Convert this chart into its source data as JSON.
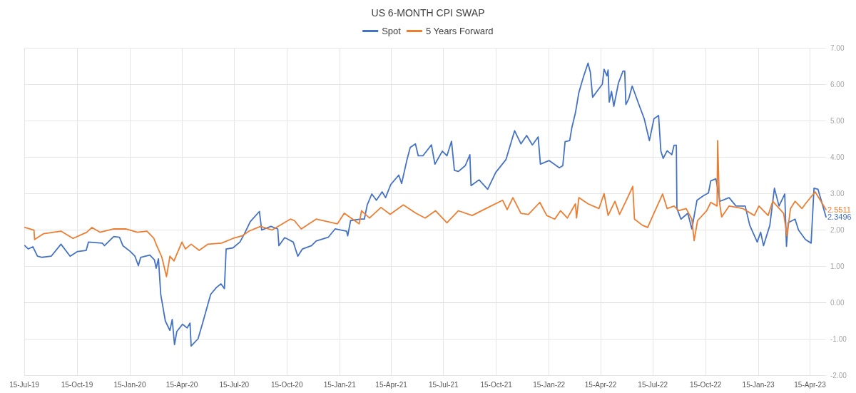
{
  "chart_data": {
    "type": "line",
    "title": "US 6-MONTH CPI SWAP",
    "legend": "top",
    "grid": true,
    "marker": "none",
    "line_style": "solid",
    "xlim": [
      "2019-07-15",
      "2023-05-13"
    ],
    "xticks": [
      {
        "value": "2019-07-15",
        "label": "15-Jul-19"
      },
      {
        "value": "2019-10-15",
        "label": "15-Oct-19"
      },
      {
        "value": "2020-01-15",
        "label": "15-Jan-20"
      },
      {
        "value": "2020-04-15",
        "label": "15-Apr-20"
      },
      {
        "value": "2020-07-15",
        "label": "15-Jul-20"
      },
      {
        "value": "2020-10-15",
        "label": "15-Oct-20"
      },
      {
        "value": "2021-01-15",
        "label": "15-Jan-21"
      },
      {
        "value": "2021-04-15",
        "label": "15-Apr-21"
      },
      {
        "value": "2021-07-15",
        "label": "15-Jul-21"
      },
      {
        "value": "2021-10-15",
        "label": "15-Oct-21"
      },
      {
        "value": "2022-01-15",
        "label": "15-Jan-22"
      },
      {
        "value": "2022-04-15",
        "label": "15-Apr-22"
      },
      {
        "value": "2022-07-15",
        "label": "15-Jul-22"
      },
      {
        "value": "2022-10-15",
        "label": "15-Oct-22"
      },
      {
        "value": "2023-01-15",
        "label": "15-Jan-23"
      },
      {
        "value": "2023-04-15",
        "label": "15-Apr-23"
      }
    ],
    "ylim": [
      -2,
      7
    ],
    "yticks": [
      {
        "value": -2,
        "label": "-2.00"
      },
      {
        "value": -1,
        "label": "-1.00"
      },
      {
        "value": 0,
        "label": "0.00"
      },
      {
        "value": 1,
        "label": "1.00"
      },
      {
        "value": 2,
        "label": "2.00"
      },
      {
        "value": 3,
        "label": "3.00"
      },
      {
        "value": 4,
        "label": "4.00"
      },
      {
        "value": 5,
        "label": "5.00"
      },
      {
        "value": 6,
        "label": "6.00"
      },
      {
        "value": 7,
        "label": "7.00"
      }
    ],
    "annotations": [
      {
        "text": "2.5511",
        "x": "2023-05-13",
        "y": 2.5511
      },
      {
        "text": "2.3496",
        "x": "2023-05-13",
        "y": 2.3496
      }
    ],
    "series": [
      {
        "name": "Spot",
        "color": "#4472c4",
        "x": [
          "2019-07-16",
          "2019-07-22",
          "2019-07-30",
          "2019-08-07",
          "2019-08-15",
          "2019-08-31",
          "2019-09-17",
          "2019-10-03",
          "2019-10-16",
          "2019-10-31",
          "2019-11-04",
          "2019-11-28",
          "2019-12-02",
          "2019-12-18",
          "2019-12-28",
          "2020-01-03",
          "2020-01-16",
          "2020-01-24",
          "2020-01-30",
          "2020-02-03",
          "2020-02-19",
          "2020-02-27",
          "2020-03-01",
          "2020-03-05",
          "2020-03-09",
          "2020-03-17",
          "2020-03-25",
          "2020-03-29",
          "2020-04-02",
          "2020-04-06",
          "2020-04-16",
          "2020-04-24",
          "2020-04-29",
          "2020-05-01",
          "2020-05-13",
          "2020-05-21",
          "2020-06-04",
          "2020-06-14",
          "2020-06-22",
          "2020-06-28",
          "2020-07-01",
          "2020-07-13",
          "2020-07-25",
          "2020-08-02",
          "2020-08-12",
          "2020-08-28",
          "2020-09-01",
          "2020-09-17",
          "2020-09-29",
          "2020-10-01",
          "2020-10-11",
          "2020-10-14",
          "2020-10-26",
          "2020-11-03",
          "2020-11-11",
          "2020-11-27",
          "2020-12-05",
          "2020-12-26",
          "2021-01-07",
          "2021-01-27",
          "2021-01-29",
          "2021-02-03",
          "2021-02-21",
          "2021-02-27",
          "2021-03-04",
          "2021-03-12",
          "2021-03-20",
          "2021-03-30",
          "2021-04-05",
          "2021-04-14",
          "2021-04-28",
          "2021-05-03",
          "2021-05-12",
          "2021-05-18",
          "2021-05-27",
          "2021-06-01",
          "2021-06-09",
          "2021-06-24",
          "2021-06-30",
          "2021-07-13",
          "2021-07-21",
          "2021-07-29",
          "2021-08-03",
          "2021-08-10",
          "2021-08-22",
          "2021-08-30",
          "2021-09-01",
          "2021-09-15",
          "2021-09-30",
          "2021-10-14",
          "2021-11-01",
          "2021-11-16",
          "2021-11-27",
          "2021-12-07",
          "2021-12-17",
          "2021-12-27",
          "2021-12-31",
          "2022-01-15",
          "2022-02-02",
          "2022-02-08",
          "2022-02-12",
          "2022-02-20",
          "2022-02-24",
          "2022-03-02",
          "2022-03-08",
          "2022-03-16",
          "2022-03-24",
          "2022-03-28",
          "2022-04-01",
          "2022-04-07",
          "2022-04-18",
          "2022-04-21",
          "2022-04-26",
          "2022-04-28",
          "2022-04-30",
          "2022-05-04",
          "2022-05-08",
          "2022-05-16",
          "2022-05-24",
          "2022-05-27",
          "2022-05-29",
          "2022-06-03",
          "2022-06-09",
          "2022-06-20",
          "2022-06-30",
          "2022-07-09",
          "2022-07-17",
          "2022-07-25",
          "2022-07-29",
          "2022-08-02",
          "2022-08-09",
          "2022-08-17",
          "2022-08-21",
          "2022-08-25",
          "2022-08-26",
          "2022-09-02",
          "2022-09-14",
          "2022-09-21",
          "2022-09-30",
          "2022-10-12",
          "2022-10-20",
          "2022-10-24",
          "2022-11-02",
          "2022-11-09",
          "2022-11-25",
          "2022-12-07",
          "2022-12-23",
          "2022-12-31",
          "2023-01-13",
          "2023-01-19",
          "2023-01-24",
          "2023-02-04",
          "2023-02-12",
          "2023-02-20",
          "2023-03-02",
          "2023-03-05",
          "2023-03-08",
          "2023-03-20",
          "2023-03-26",
          "2023-04-07",
          "2023-04-17",
          "2023-04-22",
          "2023-04-29",
          "2023-05-13"
        ],
        "values": [
          1.56,
          1.47,
          1.53,
          1.27,
          1.24,
          1.27,
          1.6,
          1.27,
          1.4,
          1.43,
          1.66,
          1.63,
          1.56,
          1.81,
          1.79,
          1.56,
          1.4,
          1.27,
          1.01,
          1.24,
          1.3,
          1.17,
          0.94,
          1.2,
          0.22,
          -0.51,
          -0.77,
          -0.47,
          -1.16,
          -0.8,
          -0.6,
          -0.7,
          -0.57,
          -1.2,
          -1.0,
          -0.57,
          0.22,
          0.41,
          0.51,
          0.38,
          1.47,
          1.5,
          1.66,
          1.89,
          2.22,
          2.5,
          1.99,
          2.09,
          2.02,
          1.56,
          1.78,
          1.76,
          1.66,
          1.27,
          1.47,
          1.56,
          1.69,
          1.79,
          2.02,
          1.96,
          1.83,
          2.25,
          2.29,
          2.29,
          2.68,
          2.98,
          2.81,
          3.04,
          2.88,
          3.24,
          3.5,
          3.27,
          3.9,
          4.26,
          4.36,
          4.03,
          4.03,
          4.33,
          3.8,
          4.16,
          4.03,
          4.43,
          3.63,
          3.6,
          3.76,
          4.06,
          3.21,
          3.37,
          3.11,
          3.57,
          3.93,
          4.72,
          4.36,
          4.59,
          4.33,
          4.55,
          3.8,
          3.9,
          3.7,
          3.76,
          4.42,
          4.45,
          4.82,
          5.21,
          5.77,
          6.2,
          6.58,
          6.33,
          5.64,
          5.77,
          6.0,
          6.41,
          6.23,
          6.39,
          5.51,
          5.8,
          5.39,
          6.03,
          6.36,
          6.36,
          5.44,
          5.6,
          5.95,
          5.47,
          5.05,
          4.45,
          5.05,
          5.14,
          4.16,
          3.96,
          4.17,
          4.06,
          4.32,
          4.32,
          2.58,
          2.29,
          2.45,
          2.02,
          2.81,
          2.94,
          3.01,
          3.34,
          3.4,
          2.78,
          2.88,
          2.65,
          2.65,
          2.12,
          1.66,
          1.93,
          1.56,
          2.12,
          3.14,
          2.65,
          2.98,
          1.54,
          2.19,
          2.29,
          1.99,
          1.73,
          1.63,
          3.14,
          3.11,
          2.3496
        ]
      },
      {
        "name": "5 Years Forward",
        "color": "#ed7d31",
        "x": [
          "2019-07-16",
          "2019-08-01",
          "2019-08-02",
          "2019-08-18",
          "2019-09-17",
          "2019-10-08",
          "2019-11-01",
          "2019-11-10",
          "2019-11-24",
          "2019-12-18",
          "2020-01-08",
          "2020-01-28",
          "2020-02-14",
          "2020-02-26",
          "2020-03-02",
          "2020-03-11",
          "2020-03-19",
          "2020-03-25",
          "2020-04-01",
          "2020-04-15",
          "2020-04-21",
          "2020-05-01",
          "2020-05-15",
          "2020-05-30",
          "2020-06-23",
          "2020-07-13",
          "2020-07-29",
          "2020-08-10",
          "2020-08-30",
          "2020-09-19",
          "2020-10-21",
          "2020-10-28",
          "2020-11-09",
          "2020-12-05",
          "2021-01-11",
          "2021-01-23",
          "2021-02-18",
          "2021-02-22",
          "2021-03-08",
          "2021-03-28",
          "2021-04-13",
          "2021-05-06",
          "2021-05-28",
          "2021-06-13",
          "2021-07-01",
          "2021-07-21",
          "2021-08-10",
          "2021-09-03",
          "2021-09-27",
          "2021-10-26",
          "2021-11-03",
          "2021-11-13",
          "2021-11-27",
          "2021-12-10",
          "2021-12-30",
          "2022-01-11",
          "2022-01-25",
          "2022-02-04",
          "2022-02-16",
          "2022-03-02",
          "2022-03-04",
          "2022-03-08",
          "2022-03-24",
          "2022-04-12",
          "2022-04-21",
          "2022-04-28",
          "2022-05-10",
          "2022-05-18",
          "2022-06-01",
          "2022-06-10",
          "2022-06-13",
          "2022-06-27",
          "2022-07-06",
          "2022-07-16",
          "2022-08-01",
          "2022-08-09",
          "2022-08-21",
          "2022-08-29",
          "2022-09-11",
          "2022-09-21",
          "2022-09-25",
          "2022-10-01",
          "2022-10-17",
          "2022-10-24",
          "2022-11-04",
          "2022-11-05",
          "2022-11-08",
          "2022-11-12",
          "2022-11-25",
          "2022-12-19",
          "2023-01-08",
          "2023-01-16",
          "2023-02-01",
          "2023-02-09",
          "2023-02-28",
          "2023-03-06",
          "2023-03-12",
          "2023-03-20",
          "2023-04-01",
          "2023-04-07",
          "2023-04-24",
          "2023-05-13"
        ],
        "values": [
          2.06,
          1.99,
          1.73,
          1.89,
          1.96,
          1.76,
          1.93,
          2.06,
          1.93,
          2.02,
          2.02,
          1.93,
          1.96,
          1.76,
          1.56,
          1.24,
          0.71,
          1.27,
          1.14,
          1.66,
          1.47,
          1.6,
          1.43,
          1.6,
          1.63,
          1.76,
          1.83,
          1.96,
          2.09,
          1.99,
          2.29,
          2.25,
          2.02,
          2.29,
          2.16,
          2.45,
          2.16,
          2.52,
          2.32,
          2.61,
          2.42,
          2.68,
          2.45,
          2.32,
          2.52,
          2.19,
          2.52,
          2.39,
          2.58,
          2.81,
          2.55,
          2.88,
          2.45,
          2.42,
          2.75,
          2.39,
          2.29,
          2.52,
          2.32,
          2.71,
          2.32,
          2.88,
          2.71,
          2.58,
          2.99,
          2.39,
          2.78,
          2.42,
          2.88,
          3.19,
          2.29,
          2.12,
          2.06,
          2.42,
          2.98,
          2.58,
          2.65,
          2.52,
          2.58,
          2.29,
          1.7,
          2.25,
          2.52,
          2.75,
          2.65,
          4.45,
          2.78,
          2.35,
          2.65,
          2.58,
          2.39,
          2.65,
          2.39,
          2.78,
          2.45,
          1.83,
          2.58,
          2.78,
          2.58,
          2.71,
          3.04,
          2.5511
        ]
      }
    ]
  }
}
